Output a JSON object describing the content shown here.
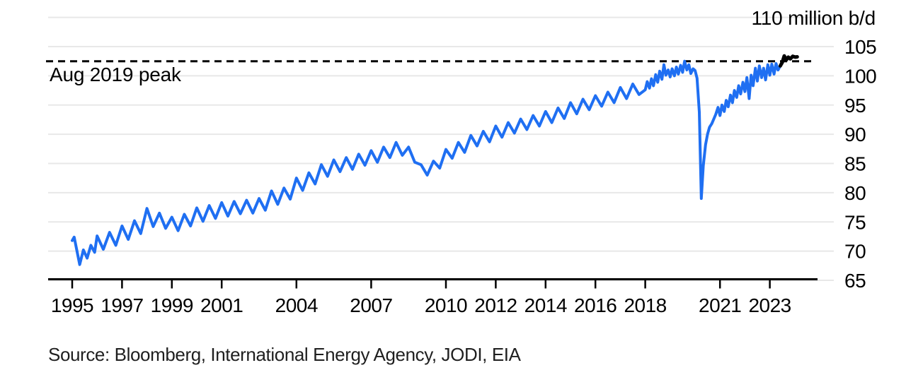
{
  "chart_data": {
    "type": "line",
    "unit_label": "110 million b/d",
    "source": "Source: Bloomberg, International Energy Agency, JODI, EIA",
    "peak_line": {
      "label": "Aug 2019 peak",
      "value": 102.5,
      "style": "dashed",
      "color": "#000000"
    },
    "x_axis": {
      "tick_years": [
        1995,
        1997,
        1999,
        2001,
        2004,
        2007,
        2010,
        2012,
        2014,
        2016,
        2018,
        2021,
        2023
      ],
      "range": [
        1994.05,
        2024.95
      ],
      "grid": false
    },
    "y_axis": {
      "ticks": [
        65,
        70,
        75,
        80,
        85,
        90,
        95,
        100,
        105
      ],
      "top_tick": 110,
      "range": [
        65,
        110
      ],
      "unit": "million b/d",
      "grid": true,
      "labels_position": "right"
    },
    "colors": {
      "line_blue": "#1f6ff2",
      "line_black": "#000000",
      "gridline": "#e8e8e8",
      "axis": "#000000"
    },
    "series": [
      {
        "name": "global-oil-demand",
        "color": "#1f6ff2",
        "width": 4,
        "points": [
          [
            1995.0,
            71.8
          ],
          [
            1995.08,
            72.4
          ],
          [
            1995.3,
            67.7
          ],
          [
            1995.45,
            70.2
          ],
          [
            1995.6,
            68.8
          ],
          [
            1995.75,
            71.0
          ],
          [
            1995.9,
            69.8
          ],
          [
            1996.0,
            72.6
          ],
          [
            1996.25,
            70.3
          ],
          [
            1996.5,
            73.2
          ],
          [
            1996.75,
            71.0
          ],
          [
            1997.0,
            74.3
          ],
          [
            1997.25,
            72.0
          ],
          [
            1997.5,
            75.2
          ],
          [
            1997.75,
            73.0
          ],
          [
            1998.0,
            77.3
          ],
          [
            1998.25,
            74.2
          ],
          [
            1998.5,
            76.5
          ],
          [
            1998.75,
            73.9
          ],
          [
            1999.0,
            75.8
          ],
          [
            1999.25,
            73.5
          ],
          [
            1999.5,
            76.3
          ],
          [
            1999.75,
            74.3
          ],
          [
            2000.0,
            77.4
          ],
          [
            2000.25,
            75.1
          ],
          [
            2000.5,
            77.8
          ],
          [
            2000.75,
            75.6
          ],
          [
            2001.0,
            78.3
          ],
          [
            2001.25,
            76.0
          ],
          [
            2001.5,
            78.5
          ],
          [
            2001.75,
            76.4
          ],
          [
            2002.0,
            78.7
          ],
          [
            2002.25,
            76.5
          ],
          [
            2002.5,
            79.0
          ],
          [
            2002.75,
            77.0
          ],
          [
            2003.0,
            80.3
          ],
          [
            2003.25,
            78.0
          ],
          [
            2003.5,
            80.8
          ],
          [
            2003.75,
            78.9
          ],
          [
            2004.0,
            82.5
          ],
          [
            2004.25,
            80.4
          ],
          [
            2004.5,
            83.4
          ],
          [
            2004.75,
            81.5
          ],
          [
            2005.0,
            84.8
          ],
          [
            2005.25,
            82.8
          ],
          [
            2005.5,
            85.6
          ],
          [
            2005.75,
            83.6
          ],
          [
            2006.0,
            86.0
          ],
          [
            2006.25,
            84.0
          ],
          [
            2006.5,
            86.6
          ],
          [
            2006.75,
            84.7
          ],
          [
            2007.0,
            87.2
          ],
          [
            2007.25,
            85.2
          ],
          [
            2007.5,
            87.8
          ],
          [
            2007.75,
            86.0
          ],
          [
            2008.0,
            88.6
          ],
          [
            2008.25,
            86.4
          ],
          [
            2008.5,
            87.8
          ],
          [
            2008.75,
            85.2
          ],
          [
            2009.0,
            84.8
          ],
          [
            2009.25,
            83.0
          ],
          [
            2009.5,
            85.4
          ],
          [
            2009.75,
            84.2
          ],
          [
            2010.0,
            87.4
          ],
          [
            2010.25,
            85.9
          ],
          [
            2010.5,
            88.6
          ],
          [
            2010.75,
            86.9
          ],
          [
            2011.0,
            89.8
          ],
          [
            2011.25,
            88.0
          ],
          [
            2011.5,
            90.5
          ],
          [
            2011.75,
            88.7
          ],
          [
            2012.0,
            91.4
          ],
          [
            2012.25,
            89.5
          ],
          [
            2012.5,
            92.0
          ],
          [
            2012.75,
            90.2
          ],
          [
            2013.0,
            92.6
          ],
          [
            2013.25,
            90.8
          ],
          [
            2013.5,
            93.2
          ],
          [
            2013.75,
            91.4
          ],
          [
            2014.0,
            93.9
          ],
          [
            2014.25,
            92.0
          ],
          [
            2014.5,
            94.5
          ],
          [
            2014.75,
            92.7
          ],
          [
            2015.0,
            95.4
          ],
          [
            2015.25,
            93.5
          ],
          [
            2015.5,
            96.0
          ],
          [
            2015.75,
            94.2
          ],
          [
            2016.0,
            96.6
          ],
          [
            2016.25,
            94.8
          ],
          [
            2016.5,
            97.2
          ],
          [
            2016.75,
            95.4
          ],
          [
            2017.0,
            98.0
          ],
          [
            2017.25,
            96.1
          ],
          [
            2017.5,
            98.6
          ],
          [
            2017.75,
            96.8
          ],
          [
            2018.0,
            97.6
          ],
          [
            2018.08,
            99.0
          ],
          [
            2018.17,
            97.9
          ],
          [
            2018.25,
            99.5
          ],
          [
            2018.33,
            98.3
          ],
          [
            2018.42,
            100.2
          ],
          [
            2018.5,
            98.9
          ],
          [
            2018.58,
            100.8
          ],
          [
            2018.67,
            99.4
          ],
          [
            2018.75,
            101.9
          ],
          [
            2018.83,
            100.1
          ],
          [
            2018.92,
            101.0
          ],
          [
            2019.0,
            99.8
          ],
          [
            2019.08,
            101.2
          ],
          [
            2019.17,
            100.0
          ],
          [
            2019.25,
            101.5
          ],
          [
            2019.33,
            100.3
          ],
          [
            2019.42,
            101.8
          ],
          [
            2019.5,
            100.6
          ],
          [
            2019.58,
            102.5
          ],
          [
            2019.67,
            101.0
          ],
          [
            2019.75,
            101.9
          ],
          [
            2019.83,
            100.4
          ],
          [
            2019.92,
            101.2
          ],
          [
            2020.0,
            100.9
          ],
          [
            2020.08,
            99.6
          ],
          [
            2020.17,
            93.8
          ],
          [
            2020.25,
            79.0
          ],
          [
            2020.33,
            84.6
          ],
          [
            2020.42,
            88.2
          ],
          [
            2020.5,
            90.0
          ],
          [
            2020.58,
            91.2
          ],
          [
            2020.67,
            91.8
          ],
          [
            2020.75,
            92.6
          ],
          [
            2020.83,
            93.4
          ],
          [
            2020.92,
            94.6
          ],
          [
            2021.0,
            93.2
          ],
          [
            2021.08,
            95.0
          ],
          [
            2021.17,
            93.9
          ],
          [
            2021.25,
            95.8
          ],
          [
            2021.33,
            94.7
          ],
          [
            2021.42,
            96.7
          ],
          [
            2021.5,
            95.4
          ],
          [
            2021.58,
            97.5
          ],
          [
            2021.67,
            96.3
          ],
          [
            2021.75,
            98.3
          ],
          [
            2021.83,
            96.9
          ],
          [
            2021.92,
            98.9
          ],
          [
            2022.0,
            97.3
          ],
          [
            2022.08,
            99.7
          ],
          [
            2022.17,
            96.1
          ],
          [
            2022.25,
            100.1
          ],
          [
            2022.33,
            98.3
          ],
          [
            2022.42,
            101.3
          ],
          [
            2022.5,
            99.1
          ],
          [
            2022.58,
            101.7
          ],
          [
            2022.67,
            99.7
          ],
          [
            2022.75,
            101.3
          ],
          [
            2022.83,
            99.3
          ],
          [
            2022.92,
            101.9
          ],
          [
            2023.0,
            100.1
          ],
          [
            2023.08,
            102.0
          ],
          [
            2023.17,
            100.3
          ],
          [
            2023.25,
            102.1
          ],
          [
            2023.33,
            101.0
          ],
          [
            2023.42,
            101.7
          ]
        ]
      },
      {
        "name": "latest-estimate-segment",
        "color": "#000000",
        "width": 5,
        "points": [
          [
            2023.42,
            101.7
          ],
          [
            2023.5,
            102.3
          ],
          [
            2023.58,
            103.4
          ],
          [
            2023.66,
            102.7
          ],
          [
            2023.74,
            103.2
          ],
          [
            2023.82,
            102.9
          ],
          [
            2023.92,
            103.35
          ],
          [
            2024.02,
            103.2
          ],
          [
            2024.1,
            103.25
          ]
        ]
      }
    ]
  }
}
